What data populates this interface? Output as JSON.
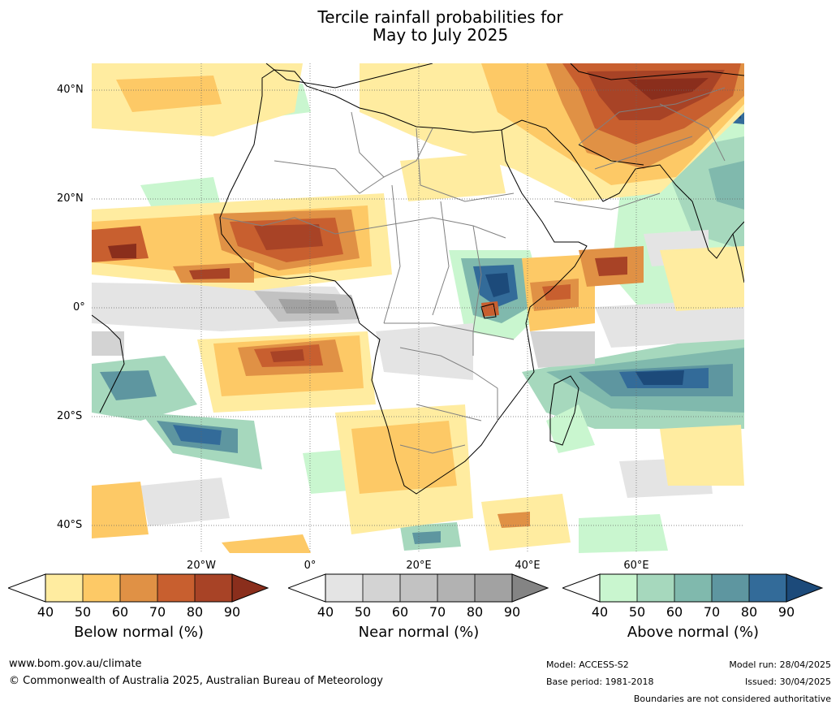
{
  "title": {
    "line1": "Tercile rainfall probabilities for",
    "line2": "May to July 2025"
  },
  "lat_labels": [
    "40°N",
    "20°N",
    "0°",
    "20°S",
    "40°S"
  ],
  "lon_labels": [
    "20°W",
    "0°",
    "20°E",
    "40°E",
    "60°E"
  ],
  "colorbars": [
    {
      "label": "Below normal (%)",
      "ticks": [
        "40",
        "50",
        "60",
        "70",
        "80",
        "90"
      ],
      "colors": [
        "#ffeca0",
        "#fdc966",
        "#e09145",
        "#c85f2f",
        "#a84326",
        "#8a2e1c"
      ]
    },
    {
      "label": "Near normal (%)",
      "ticks": [
        "40",
        "50",
        "60",
        "70",
        "80",
        "90"
      ],
      "colors": [
        "#e4e4e4",
        "#d3d3d3",
        "#c2c2c2",
        "#b2b2b2",
        "#a2a2a2",
        "#848484"
      ]
    },
    {
      "label": "Above normal (%)",
      "ticks": [
        "40",
        "50",
        "60",
        "70",
        "80",
        "90"
      ],
      "colors": [
        "#c9f6cf",
        "#a6d8bd",
        "#80b9ad",
        "#5e96a0",
        "#336b99",
        "#1c4a7a"
      ]
    }
  ],
  "footer": {
    "website": "www.bom.gov.au/climate",
    "copyright": "© Commonwealth of Australia 2025, Australian Bureau of Meteorology",
    "model": "Model: ACCESS-S2",
    "base_period": "Base period: 1981-2018",
    "model_run": "Model run: 28/04/2025",
    "issued": "Issued: 30/04/2025",
    "disclaimer": "Boundaries are not considered authoritative"
  }
}
